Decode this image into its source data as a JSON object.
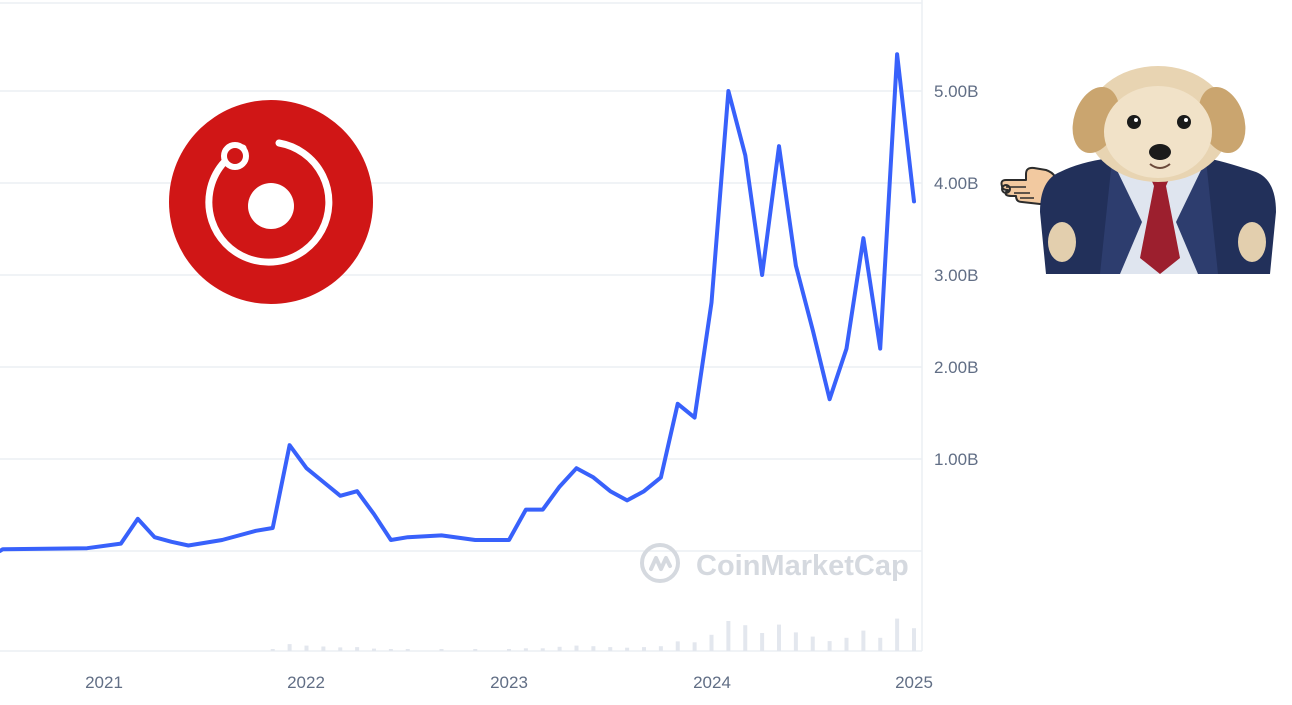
{
  "chart_data": {
    "type": "line",
    "title": "",
    "xlabel": "",
    "ylabel": "",
    "x_ticks": [
      "2021",
      "2022",
      "2023",
      "2024",
      "2025"
    ],
    "y_ticks": [
      "1.00B",
      "2.00B",
      "3.00B",
      "4.00B",
      "5.00B"
    ],
    "ylim": [
      0,
      5.5
    ],
    "grid": true,
    "watermark": "CoinMarketCap",
    "series": [
      {
        "color": "#3861fb",
        "x": [
          "2020-01",
          "2020-07",
          "2020-12",
          "2021-02",
          "2021-03",
          "2021-04",
          "2021-05",
          "2021-06",
          "2021-08",
          "2021-10",
          "2021-11",
          "2021-12",
          "2022-01",
          "2022-02",
          "2022-03",
          "2022-04",
          "2022-05",
          "2022-06",
          "2022-07",
          "2022-09",
          "2022-11",
          "2023-01",
          "2023-02",
          "2023-03",
          "2023-04",
          "2023-05",
          "2023-06",
          "2023-07",
          "2023-08",
          "2023-09",
          "2023-10",
          "2023-11",
          "2023-12",
          "2024-01",
          "2024-02",
          "2024-03",
          "2024-04",
          "2024-05",
          "2024-06",
          "2024-07",
          "2024-08",
          "2024-09",
          "2024-10",
          "2024-11",
          "2024-12",
          "2025-01"
        ],
        "values": [
          0.0,
          0.02,
          0.03,
          0.08,
          0.35,
          0.15,
          0.1,
          0.06,
          0.12,
          0.22,
          0.25,
          1.15,
          0.9,
          0.75,
          0.6,
          0.65,
          0.4,
          0.12,
          0.15,
          0.17,
          0.12,
          0.12,
          0.45,
          0.45,
          0.7,
          0.9,
          0.8,
          0.65,
          0.55,
          0.65,
          0.8,
          1.6,
          1.45,
          2.7,
          5.0,
          4.3,
          3.0,
          4.4,
          3.1,
          2.4,
          1.65,
          2.2,
          3.4,
          2.2,
          5.4,
          3.8
        ]
      }
    ]
  }
}
